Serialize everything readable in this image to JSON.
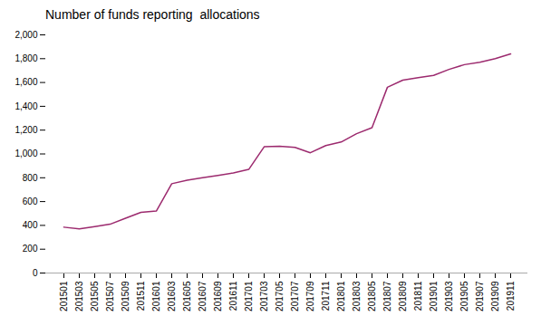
{
  "chart_data": {
    "type": "line",
    "title": "Number of funds reporting  allocations",
    "categories": [
      "201501",
      "201503",
      "201505",
      "201507",
      "201509",
      "201511",
      "201601",
      "201603",
      "201605",
      "201607",
      "201609",
      "201611",
      "201701",
      "201703",
      "201705",
      "201707",
      "201709",
      "201711",
      "201801",
      "201803",
      "201805",
      "201807",
      "201809",
      "201811",
      "201901",
      "201903",
      "201905",
      "201907",
      "201909",
      "201911"
    ],
    "values": [
      385,
      370,
      390,
      410,
      460,
      510,
      520,
      750,
      780,
      800,
      820,
      840,
      870,
      1060,
      1065,
      1055,
      1010,
      1070,
      1100,
      1170,
      1220,
      1560,
      1620,
      1640,
      1660,
      1710,
      1750,
      1770,
      1800,
      1840
    ],
    "color": "#9C2A6E",
    "ylim": [
      0,
      2000
    ],
    "yticks": [
      0,
      200,
      400,
      600,
      800,
      {
        "value": 1000,
        "label": "1,000"
      },
      {
        "value": 1200,
        "label": "1,200"
      },
      {
        "value": 1400,
        "label": "1,400"
      },
      {
        "value": 1600,
        "label": "1,600"
      },
      {
        "value": 1800,
        "label": "1,800"
      },
      {
        "value": 2000,
        "label": "2,000"
      }
    ],
    "grid": false
  }
}
